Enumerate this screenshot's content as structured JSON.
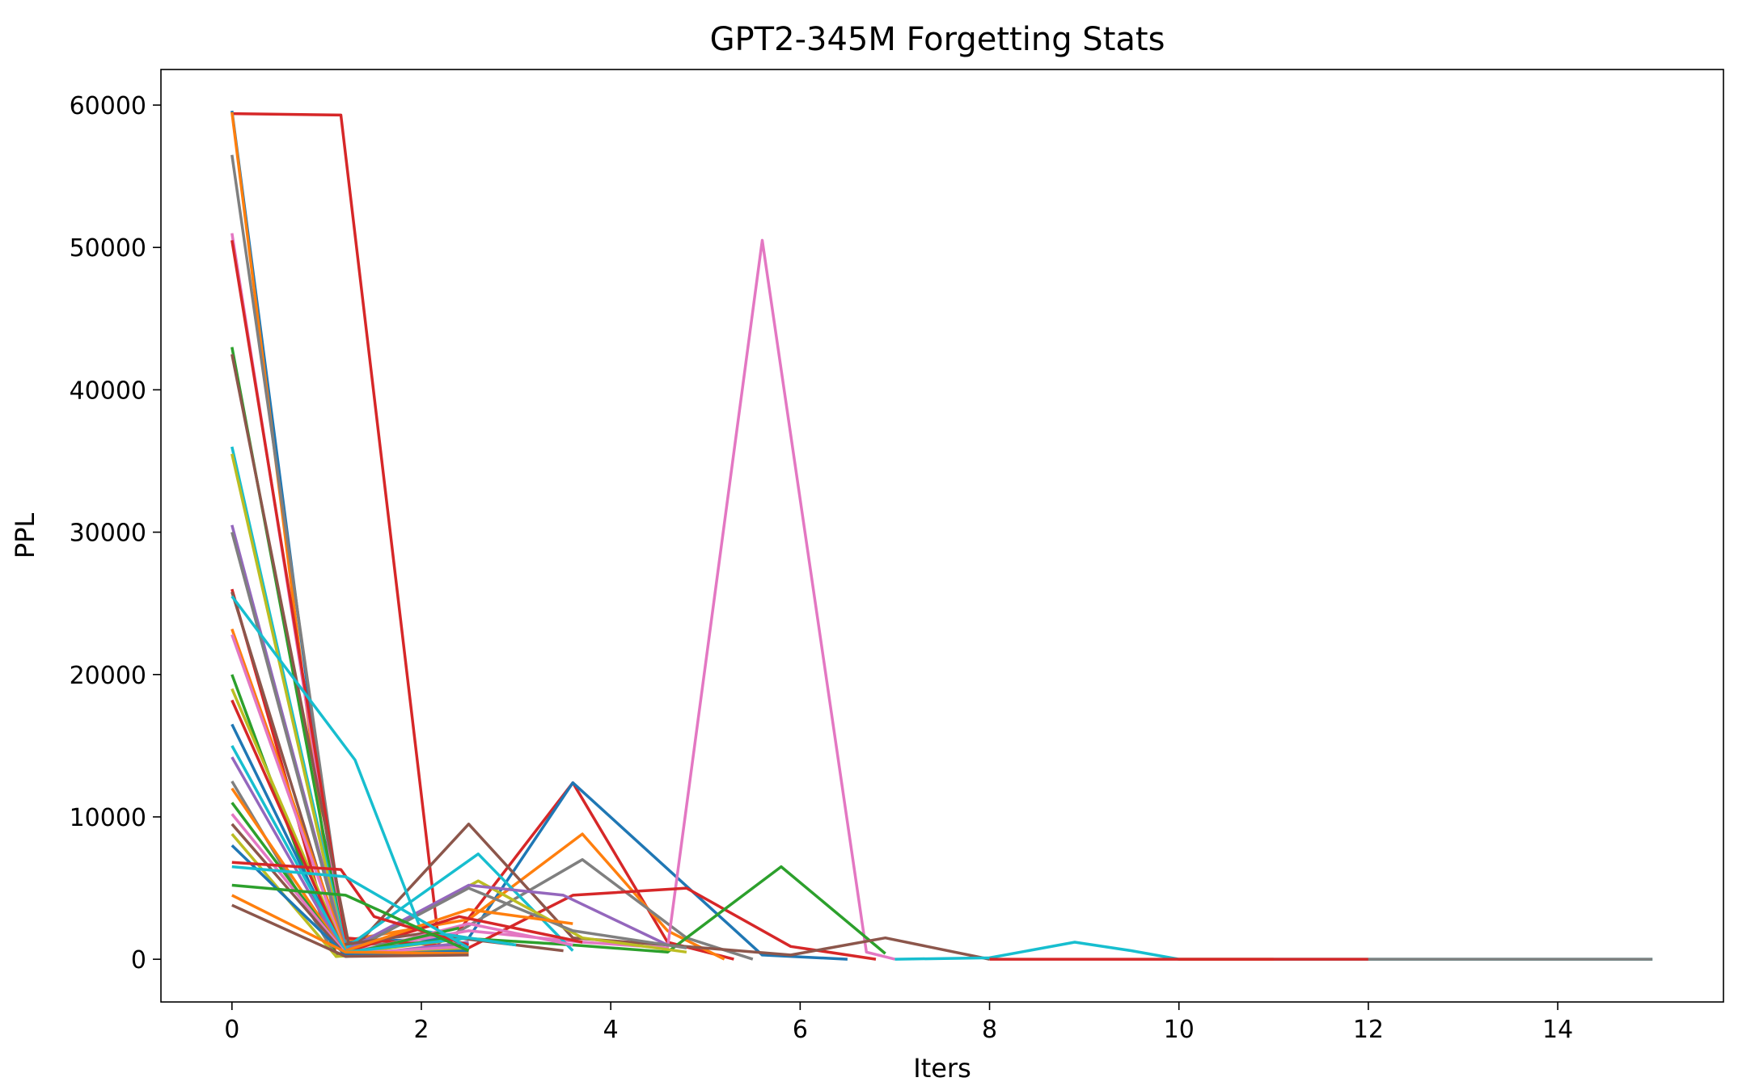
{
  "chart_data": {
    "type": "line",
    "title": "GPT2-345M Forgetting Stats",
    "xlabel": "Iters",
    "ylabel": "PPL",
    "xlim": [
      -0.75,
      15.75
    ],
    "ylim": [
      -3000,
      62500
    ],
    "xticks": [
      0,
      2,
      4,
      6,
      8,
      10,
      12,
      14
    ],
    "yticks": [
      0,
      10000,
      20000,
      30000,
      40000,
      50000,
      60000
    ],
    "grid": false,
    "legend": "none",
    "palette": [
      "#1f77b4",
      "#ff7f0e",
      "#2ca02c",
      "#d62728",
      "#9467bd",
      "#8c564b",
      "#e377c2",
      "#7f7f7f",
      "#bcbd22",
      "#17becf"
    ],
    "series": [
      {
        "x": [
          0,
          1.15,
          2.2,
          3.6,
          4.6,
          5.3
        ],
        "y": [
          59400,
          59300,
          300,
          12400,
          1200,
          0
        ],
        "color": "#d62728"
      },
      {
        "x": [
          0,
          1.15,
          2.5,
          3.6,
          5.6,
          6.5
        ],
        "y": [
          59600,
          1200,
          1500,
          12400,
          300,
          0
        ],
        "color": "#1f77b4"
      },
      {
        "x": [
          0,
          1.1,
          2.5,
          3.7,
          4.6,
          5.2
        ],
        "y": [
          59500,
          1200,
          2800,
          8800,
          2000,
          0
        ],
        "color": "#ff7f0e"
      },
      {
        "x": [
          0,
          1.2,
          2.2,
          3.7,
          4.8,
          5.5
        ],
        "y": [
          56500,
          1000,
          1200,
          7000,
          1500,
          0
        ],
        "color": "#7f7f7f"
      },
      {
        "x": [
          0,
          1.2,
          2.5,
          3.7,
          4.6,
          5.6,
          6.7,
          7.0
        ],
        "y": [
          51000,
          500,
          2000,
          1200,
          800,
          50500,
          500,
          0
        ],
        "color": "#e377c2"
      },
      {
        "x": [
          0,
          1.2,
          2.5,
          3.6,
          4.8,
          5.9,
          6.8
        ],
        "y": [
          50500,
          1500,
          800,
          4500,
          5000,
          900,
          0
        ],
        "color": "#d62728"
      },
      {
        "x": [
          0,
          1.2,
          2.4,
          3.6,
          4.6,
          5.8,
          6.9
        ],
        "y": [
          43000,
          500,
          1500,
          1000,
          500,
          6500,
          400
        ],
        "color": "#2ca02c"
      },
      {
        "x": [
          0,
          1.25,
          2.5,
          3.6,
          4.6,
          5.9,
          6.9,
          8.0
        ],
        "y": [
          42500,
          500,
          9500,
          1500,
          1000,
          300,
          1500,
          0
        ],
        "color": "#8c564b"
      },
      {
        "x": [
          0,
          1.2,
          2.6,
          3.6
        ],
        "y": [
          36000,
          800,
          7400,
          600
        ],
        "color": "#17becf"
      },
      {
        "x": [
          0,
          1.2,
          2.6,
          3.7,
          4.8
        ],
        "y": [
          35500,
          400,
          5500,
          1500,
          500
        ],
        "color": "#bcbd22"
      },
      {
        "x": [
          0,
          1.2,
          2.5,
          3.5,
          4.6
        ],
        "y": [
          30500,
          600,
          5200,
          4500,
          1000
        ],
        "color": "#9467bd"
      },
      {
        "x": [
          0,
          1.2,
          2.5,
          3.6,
          4.8
        ],
        "y": [
          30000,
          400,
          5000,
          2000,
          800
        ],
        "color": "#7f7f7f"
      },
      {
        "x": [
          0,
          1.1,
          2.4,
          3.7
        ],
        "y": [
          26000,
          300,
          3000,
          1200
        ],
        "color": "#d62728"
      },
      {
        "x": [
          0,
          1.15,
          2.0,
          3.5
        ],
        "y": [
          25800,
          1000,
          1800,
          600
        ],
        "color": "#8c564b"
      },
      {
        "x": [
          0,
          1.3,
          2.0,
          3.0
        ],
        "y": [
          25500,
          14000,
          2000,
          1000
        ],
        "color": "#17becf"
      },
      {
        "x": [
          0,
          1.2,
          2.5,
          3.6
        ],
        "y": [
          23200,
          600,
          3500,
          2500
        ],
        "color": "#ff7f0e"
      },
      {
        "x": [
          0,
          1.2,
          2.5,
          3.6
        ],
        "y": [
          22800,
          300,
          2500,
          1000
        ],
        "color": "#e377c2"
      },
      {
        "x": [
          0,
          1.1,
          2.4
        ],
        "y": [
          20000,
          200,
          2200
        ],
        "color": "#2ca02c"
      },
      {
        "x": [
          0,
          1.2,
          2.5
        ],
        "y": [
          19000,
          400,
          1500
        ],
        "color": "#bcbd22"
      },
      {
        "x": [
          0,
          1.2,
          2.5
        ],
        "y": [
          18200,
          300,
          1000
        ],
        "color": "#d62728"
      },
      {
        "x": [
          0,
          1.2,
          2.4
        ],
        "y": [
          16500,
          200,
          800
        ],
        "color": "#1f77b4"
      },
      {
        "x": [
          0,
          1.2,
          2.5
        ],
        "y": [
          15000,
          500,
          1500
        ],
        "color": "#17becf"
      },
      {
        "x": [
          0,
          1.2,
          2.5
        ],
        "y": [
          14200,
          200,
          1200
        ],
        "color": "#9467bd"
      },
      {
        "x": [
          0,
          1.1,
          2.4
        ],
        "y": [
          12500,
          200,
          900
        ],
        "color": "#7f7f7f"
      },
      {
        "x": [
          0,
          1.2,
          2.5
        ],
        "y": [
          12000,
          300,
          700
        ],
        "color": "#ff7f0e"
      },
      {
        "x": [
          0,
          1.2,
          2.5
        ],
        "y": [
          11000,
          300,
          600
        ],
        "color": "#2ca02c"
      },
      {
        "x": [
          0,
          1.2,
          2.5
        ],
        "y": [
          10200,
          400,
          900
        ],
        "color": "#e377c2"
      },
      {
        "x": [
          0,
          1.2,
          2.5
        ],
        "y": [
          9500,
          300,
          500
        ],
        "color": "#8c564b"
      },
      {
        "x": [
          0,
          1.1,
          2.5
        ],
        "y": [
          8800,
          200,
          700
        ],
        "color": "#bcbd22"
      },
      {
        "x": [
          0,
          1.2,
          2.5
        ],
        "y": [
          8000,
          300,
          600
        ],
        "color": "#1f77b4"
      },
      {
        "x": [
          0,
          1.15,
          1.5,
          2.5
        ],
        "y": [
          6800,
          6300,
          3000,
          1000
        ],
        "color": "#d62728"
      },
      {
        "x": [
          0,
          1.2,
          2.5
        ],
        "y": [
          6500,
          5800,
          800
        ],
        "color": "#17becf"
      },
      {
        "x": [
          0,
          1.2,
          2.5
        ],
        "y": [
          5200,
          4500,
          600
        ],
        "color": "#2ca02c"
      },
      {
        "x": [
          0,
          1.2,
          2.5
        ],
        "y": [
          4500,
          500,
          400
        ],
        "color": "#ff7f0e"
      },
      {
        "x": [
          0,
          1.2,
          2.5
        ],
        "y": [
          3800,
          200,
          300
        ],
        "color": "#8c564b"
      },
      {
        "x": [
          7,
          8,
          8.9,
          9.5,
          10,
          11,
          12,
          15
        ],
        "y": [
          0,
          100,
          1200,
          600,
          0,
          0,
          0,
          0
        ],
        "color": "#17becf"
      },
      {
        "x": [
          10,
          11
        ],
        "y": [
          0,
          0
        ],
        "color": "#ff7f0e"
      },
      {
        "x": [
          8,
          10,
          11,
          12
        ],
        "y": [
          0,
          0,
          0,
          0
        ],
        "color": "#d62728"
      },
      {
        "x": [
          12,
          15
        ],
        "y": [
          0,
          0
        ],
        "color": "#7f7f7f"
      }
    ]
  }
}
